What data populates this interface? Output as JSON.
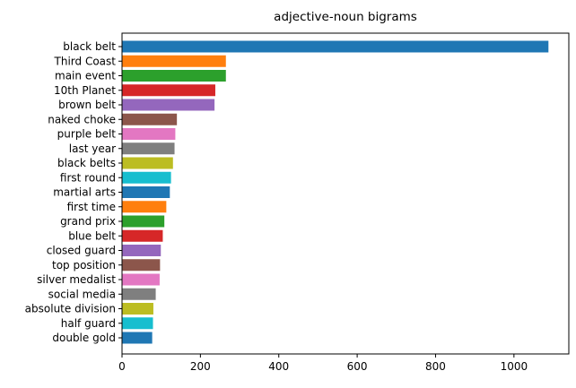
{
  "chart_data": {
    "type": "bar",
    "orientation": "horizontal",
    "title": "adjective-noun bigrams",
    "xlabel": "",
    "ylabel": "",
    "xlim": [
      0,
      1140
    ],
    "xticks": [
      0,
      200,
      400,
      600,
      800,
      1000
    ],
    "grid": false,
    "legend": "none",
    "categories": [
      "black belt",
      "Third Coast",
      "main event",
      "10th Planet",
      "brown belt",
      "naked choke",
      "purple belt",
      "last year",
      "black belts",
      "first round",
      "martial arts",
      "first time",
      "grand prix",
      "blue belt",
      "closed guard",
      "top position",
      "silver medalist",
      "social media",
      "absolute division",
      "half guard",
      "double gold"
    ],
    "values": [
      1088,
      265,
      265,
      238,
      236,
      140,
      136,
      134,
      130,
      125,
      122,
      113,
      108,
      104,
      99,
      97,
      96,
      86,
      80,
      79,
      77
    ],
    "colors": [
      "#1f77b4",
      "#ff7f0e",
      "#2ca02c",
      "#d62728",
      "#9467bd",
      "#8c564b",
      "#e377c2",
      "#7f7f7f",
      "#bcbd22",
      "#17becf"
    ]
  }
}
